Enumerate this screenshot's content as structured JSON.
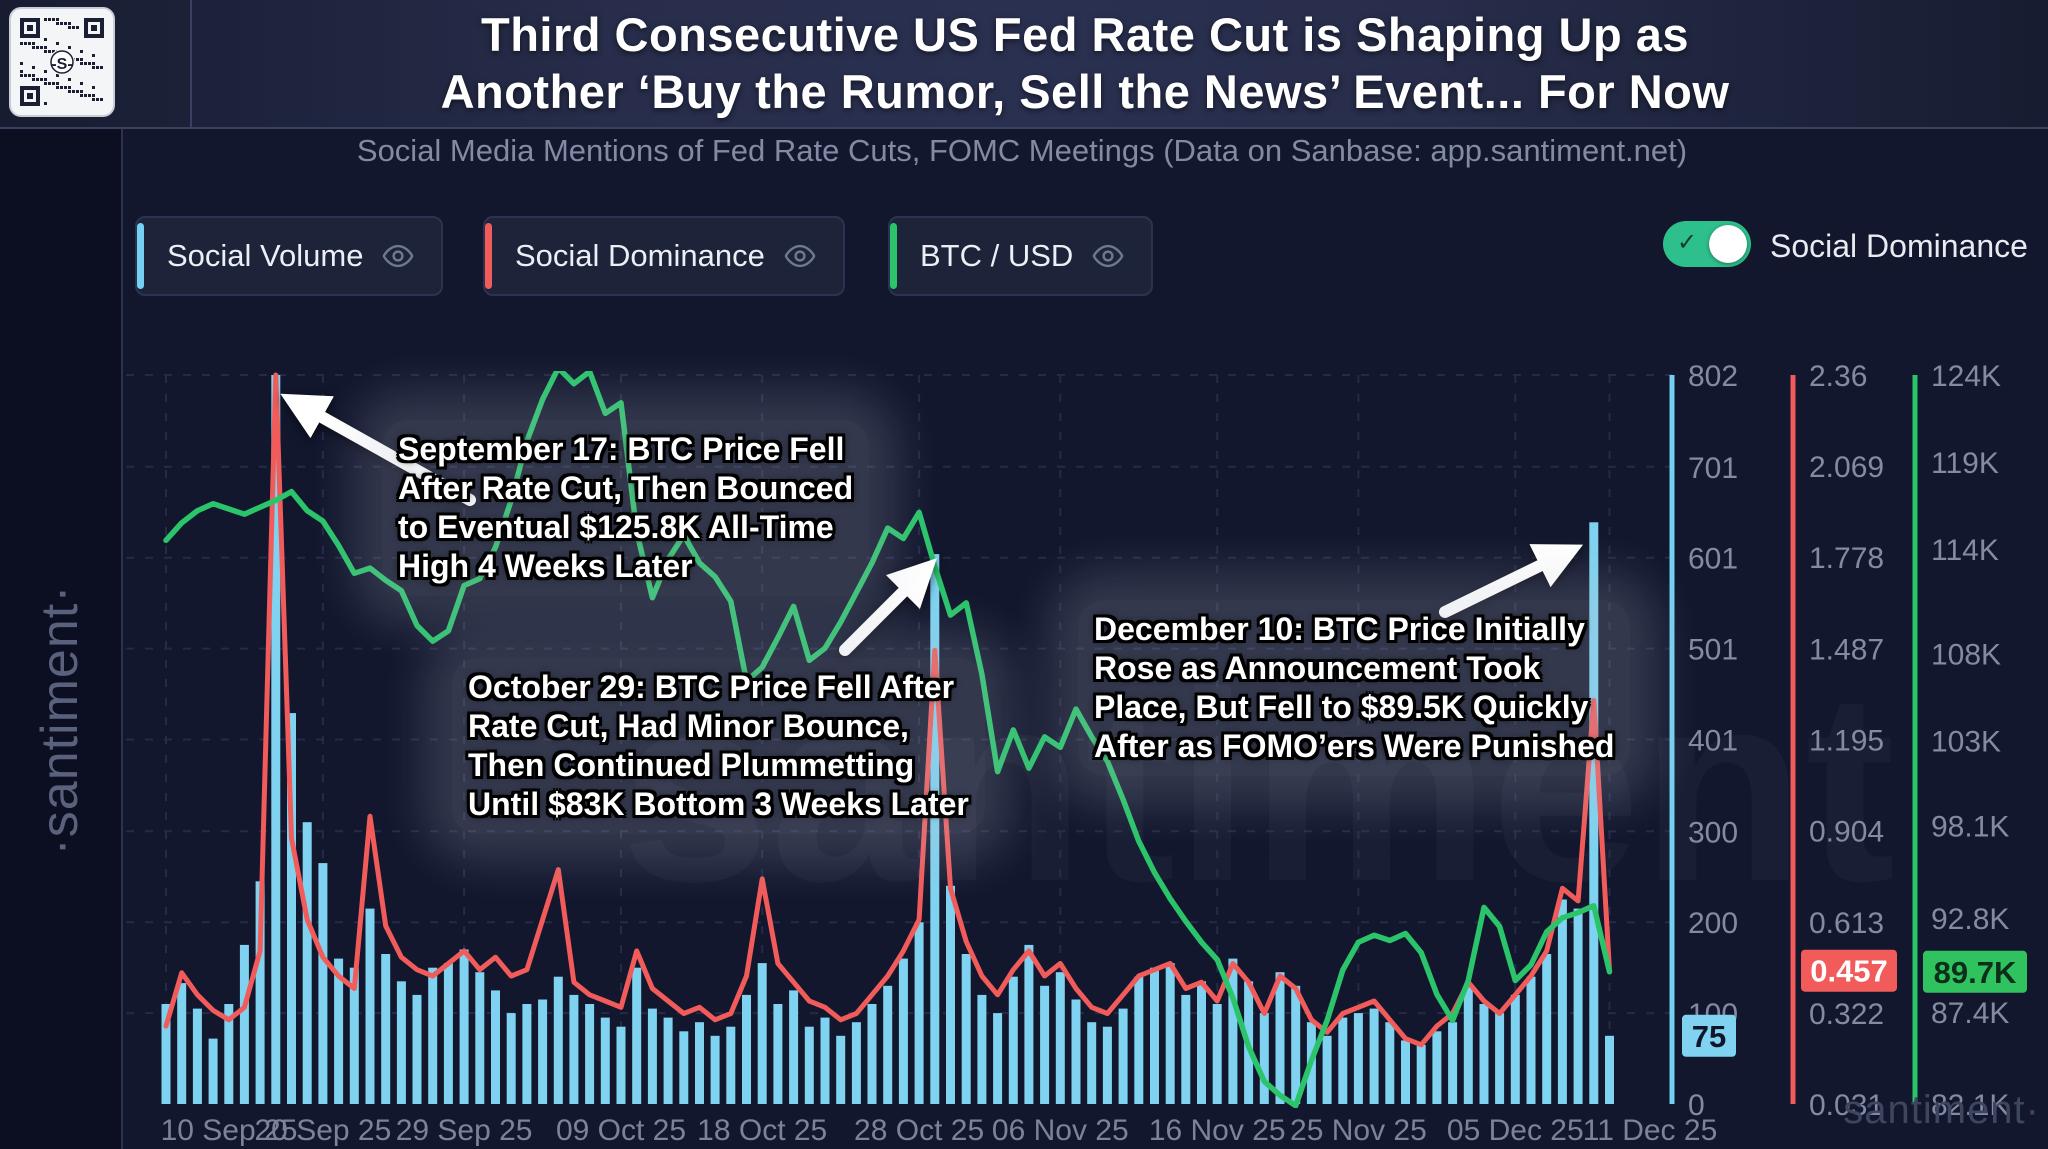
{
  "header": {
    "title_line1": "Third Consecutive US Fed Rate Cut is Shaping Up as",
    "title_line2": "Another ‘Buy the Rumor, Sell the News’ Event... For Now",
    "subtitle": "Social Media Mentions of Fed Rate Cuts, FOMC Meetings (Data on Sanbase: app.santiment.net)"
  },
  "sidebar": {
    "watermark": "·santiment·"
  },
  "watermarks": {
    "plot_center": "santiment",
    "bottom_right": "santiment·"
  },
  "legend": {
    "items": [
      {
        "label": "Social Volume",
        "color": "#76d0f1"
      },
      {
        "label": "Social Dominance",
        "color": "#f15b5a"
      },
      {
        "label": "BTC / USD",
        "color": "#2bc46b"
      }
    ]
  },
  "toggle": {
    "label": "Social Dominance",
    "state": "on",
    "color": "#2ec08c"
  },
  "annotations": [
    {
      "id": "sep17",
      "text": "September 17: BTC Price Fell\nAfter Rate Cut, Then Bounced\nto Eventual $125.8K All-Time\nHigh 4 Weeks Later"
    },
    {
      "id": "oct29",
      "text": "October 29: BTC Price Fell After\nRate Cut, Had Minor Bounce,\nThen Continued Plummetting\nUntil $83K Bottom 3 Weeks Later"
    },
    {
      "id": "dec10",
      "text": "December 10: BTC Price Initially\nRose as Announcement Took\nPlace, But Fell to $89.5K Quickly\nAfter as FOMO’ers Were Punished"
    }
  ],
  "chart_data": {
    "type": "mixed",
    "x_start_date": "10 Sep 25",
    "x_end_date": "11 Dec 25",
    "x_ticks": [
      {
        "label": "10 Sep 25",
        "index": 0
      },
      {
        "label": "20 Sep 25",
        "index": 10
      },
      {
        "label": "29 Sep 25",
        "index": 19
      },
      {
        "label": "09 Oct 25",
        "index": 29
      },
      {
        "label": "18 Oct 25",
        "index": 38
      },
      {
        "label": "28 Oct 25",
        "index": 48
      },
      {
        "label": "06 Nov 25",
        "index": 57
      },
      {
        "label": "16 Nov 25",
        "index": 67
      },
      {
        "label": "25 Nov 25",
        "index": 76
      },
      {
        "label": "05 Dec 25",
        "index": 86
      },
      {
        "label": "11 Dec 25",
        "index": 92
      }
    ],
    "axes": {
      "volume": {
        "color": "#76d0f1",
        "range": [
          0,
          802
        ],
        "ticks": [
          802,
          701,
          601,
          501,
          401,
          300,
          200,
          100,
          0
        ],
        "current_value": 75,
        "current_label": "75"
      },
      "dominance": {
        "color": "#f15b5a",
        "range": [
          0.031,
          2.36
        ],
        "ticks": [
          2.36,
          2.069,
          1.778,
          1.487,
          1.195,
          0.904,
          0.613,
          0.322,
          0.031
        ],
        "current_value": 0.457,
        "current_label": "0.457"
      },
      "price": {
        "color": "#2bc46b",
        "range_kusd": [
          82.1,
          124
        ],
        "tick_values_kusd": [
          124,
          119,
          114,
          108,
          103,
          98.1,
          92.8,
          87.4,
          82.1
        ],
        "tick_labels": [
          "124K",
          "119K",
          "114K",
          "108K",
          "103K",
          "98.1K",
          "92.8K",
          "87.4K",
          "82.1K"
        ],
        "current_value_kusd": 89.7,
        "current_label": "89.7K"
      }
    },
    "series": [
      {
        "name": "Social Volume",
        "type": "bar",
        "axis": "volume",
        "color": "#7fd3f0",
        "values": [
          110,
          133,
          105,
          72,
          110,
          175,
          245,
          802,
          430,
          310,
          265,
          160,
          150,
          215,
          165,
          135,
          120,
          150,
          155,
          170,
          145,
          125,
          100,
          110,
          115,
          140,
          120,
          110,
          95,
          85,
          150,
          105,
          95,
          80,
          90,
          75,
          85,
          120,
          155,
          110,
          125,
          85,
          95,
          75,
          90,
          110,
          130,
          160,
          200,
          605,
          240,
          165,
          120,
          100,
          140,
          175,
          130,
          145,
          115,
          90,
          85,
          105,
          140,
          150,
          155,
          120,
          135,
          110,
          160,
          135,
          100,
          145,
          130,
          90,
          75,
          95,
          100,
          105,
          90,
          70,
          65,
          80,
          90,
          130,
          110,
          100,
          120,
          140,
          165,
          225,
          215,
          640,
          75
        ]
      },
      {
        "name": "Social Dominance",
        "type": "line",
        "axis": "dominance",
        "color": "#f15b5a",
        "values": [
          0.28,
          0.45,
          0.38,
          0.33,
          0.3,
          0.34,
          0.52,
          2.36,
          0.88,
          0.62,
          0.5,
          0.44,
          0.4,
          0.95,
          0.6,
          0.5,
          0.46,
          0.44,
          0.48,
          0.52,
          0.46,
          0.5,
          0.44,
          0.46,
          0.62,
          0.78,
          0.42,
          0.38,
          0.36,
          0.34,
          0.52,
          0.4,
          0.36,
          0.32,
          0.34,
          0.3,
          0.32,
          0.44,
          0.75,
          0.48,
          0.42,
          0.36,
          0.34,
          0.3,
          0.32,
          0.38,
          0.44,
          0.52,
          0.62,
          1.48,
          0.72,
          0.55,
          0.44,
          0.38,
          0.46,
          0.52,
          0.44,
          0.48,
          0.4,
          0.34,
          0.32,
          0.38,
          0.44,
          0.46,
          0.48,
          0.4,
          0.42,
          0.36,
          0.48,
          0.42,
          0.32,
          0.44,
          0.4,
          0.3,
          0.26,
          0.32,
          0.34,
          0.36,
          0.3,
          0.24,
          0.22,
          0.28,
          0.32,
          0.42,
          0.36,
          0.32,
          0.38,
          0.44,
          0.52,
          0.72,
          0.68,
          1.32,
          0.457
        ]
      },
      {
        "name": "BTC / USD",
        "type": "line",
        "axis": "price",
        "unit": "K USD",
        "color": "#2bc46b",
        "values": [
          114.5,
          115.5,
          116.2,
          116.6,
          116.3,
          116.0,
          116.4,
          116.8,
          117.3,
          116.2,
          115.6,
          114.2,
          112.6,
          112.9,
          112.2,
          111.6,
          109.6,
          108.7,
          109.3,
          111.9,
          112.3,
          114.1,
          116.8,
          120.2,
          122.6,
          124.4,
          123.5,
          124.2,
          121.8,
          122.4,
          115.0,
          111.2,
          113.4,
          114.8,
          113.2,
          112.4,
          111.0,
          106.4,
          107.2,
          108.9,
          110.7,
          107.6,
          108.3,
          109.8,
          111.5,
          113.2,
          115.2,
          114.6,
          116.1,
          113.0,
          110.2,
          110.9,
          106.8,
          101.2,
          103.6,
          101.4,
          103.2,
          102.6,
          104.8,
          103.2,
          101.8,
          99.6,
          97.2,
          95.4,
          93.9,
          92.6,
          91.4,
          90.4,
          88.2,
          85.4,
          83.4,
          82.6,
          82.0,
          84.6,
          86.9,
          89.8,
          91.4,
          91.8,
          91.5,
          91.9,
          90.8,
          88.4,
          86.9,
          89.2,
          93.4,
          92.3,
          89.2,
          90.1,
          92.0,
          92.8,
          93.1,
          93.5,
          89.7
        ]
      }
    ],
    "grid": "dashed",
    "legend_position": "top-left"
  }
}
